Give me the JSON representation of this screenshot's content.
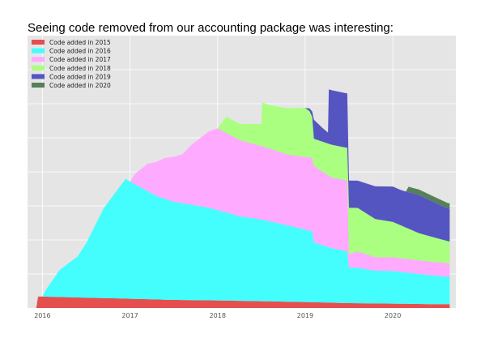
{
  "caption": "Seeing code removed from our accounting package was interesting:",
  "chart_data": {
    "type": "area",
    "stacked": true,
    "title": "",
    "xlabel": "",
    "ylabel": "",
    "xlim": [
      2015.83,
      2020.72
    ],
    "ylim": [
      0,
      100
    ],
    "x_ticks": [
      2016,
      2017,
      2018,
      2019,
      2020
    ],
    "x_tick_labels": [
      "2016",
      "2017",
      "2018",
      "2019",
      "2020"
    ],
    "y_tick_labels_shown": false,
    "grid": true,
    "background": "#e5e5e5",
    "legend_position": "top-left",
    "series": [
      {
        "name": "Code added in 2015",
        "color": "#e5504f",
        "x": [
          2015.93,
          2015.95,
          2016.0,
          2016.5,
          2017.0,
          2017.5,
          2018.0,
          2018.5,
          2019.0,
          2019.5,
          2020.0,
          2020.5,
          2020.65
        ],
        "values": [
          0,
          4.2,
          4.2,
          3.8,
          3.4,
          3.0,
          2.8,
          2.5,
          2.2,
          1.8,
          1.6,
          1.4,
          1.4
        ]
      },
      {
        "name": "Code added in 2016",
        "color": "#44fefe",
        "x": [
          2016.0,
          2016.05,
          2016.2,
          2016.4,
          2016.5,
          2016.7,
          2016.95,
          2017.0,
          2017.3,
          2017.5,
          2017.7,
          2017.9,
          2018.25,
          2018.5,
          2018.8,
          2019.08,
          2019.1,
          2019.3,
          2019.48,
          2019.5,
          2019.6,
          2019.8,
          2020.0,
          2020.3,
          2020.65
        ],
        "values": [
          0,
          3,
          10,
          15,
          20,
          33,
          44,
          43,
          38,
          36,
          35,
          34,
          31,
          30,
          28,
          26,
          22,
          20,
          19,
          13,
          13,
          12,
          12,
          11,
          10
        ]
      },
      {
        "name": "Code added in 2017",
        "color": "#feaafe",
        "x": [
          2017.0,
          2017.06,
          2017.2,
          2017.4,
          2017.6,
          2017.7,
          2017.9,
          2018.0,
          2018.25,
          2018.5,
          2018.8,
          2019.08,
          2019.1,
          2019.3,
          2019.48,
          2019.5,
          2019.6,
          2019.8,
          2020.0,
          2020.3,
          2020.65
        ],
        "values": [
          0,
          4,
          10,
          15,
          18,
          22,
          28,
          30,
          28,
          27,
          26,
          27,
          28,
          26,
          26,
          5,
          6,
          5,
          5,
          5,
          5
        ]
      },
      {
        "name": "Code added in 2018",
        "color": "#aafe80",
        "x": [
          2018.0,
          2018.05,
          2018.1,
          2018.25,
          2018.5,
          2018.51,
          2018.6,
          2018.8,
          2019.0,
          2019.05,
          2019.08,
          2019.1,
          2019.3,
          2019.48,
          2019.5,
          2019.6,
          2019.8,
          2020.0,
          2020.1,
          2020.3,
          2020.65
        ],
        "values": [
          0,
          3,
          6,
          6,
          8,
          16,
          16,
          17,
          18,
          17,
          15,
          10,
          12,
          12,
          17,
          16,
          14,
          13,
          12,
          10,
          8
        ]
      },
      {
        "name": "Code added in 2019",
        "color": "#5555c1",
        "x": [
          2019.0,
          2019.05,
          2019.08,
          2019.1,
          2019.2,
          2019.26,
          2019.27,
          2019.4,
          2019.48,
          2019.5,
          2019.6,
          2019.8,
          2020.0,
          2020.1,
          2020.3,
          2020.62,
          2020.65
        ],
        "values": [
          0,
          1,
          2,
          7,
          5,
          4,
          20,
          20,
          20,
          10,
          10,
          12,
          13,
          13,
          14,
          12,
          12
        ]
      },
      {
        "name": "Code added in 2020",
        "color": "#55805a",
        "x": [
          2020.0,
          2020.15,
          2020.18,
          2020.4,
          2020.65
        ],
        "values": [
          0,
          0,
          2,
          2,
          2
        ]
      }
    ]
  }
}
